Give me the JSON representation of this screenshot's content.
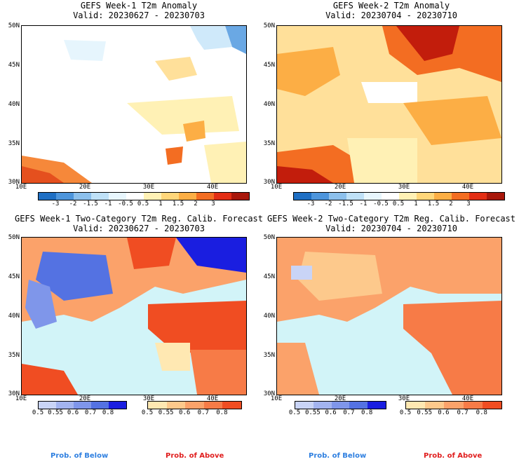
{
  "panels": [
    {
      "title": "GEFS Week-1 T2m Anomaly",
      "valid": "Valid: 20230627 - 20230703"
    },
    {
      "title": "GEFS Week-2 T2m Anomaly",
      "valid": "Valid: 20230704 - 20230710"
    },
    {
      "title": "GEFS Week-1 Two-Category T2m Reg. Calib. Forecast",
      "valid": "Valid: 20230627 - 20230703"
    },
    {
      "title": "GEFS Week-2 Two-Category T2m Reg. Calib. Forecast",
      "valid": "Valid: 20230704 - 20230710"
    }
  ],
  "lat_labels": [
    "50N",
    "45N",
    "40N",
    "35N",
    "30N"
  ],
  "lon_labels": [
    "10E",
    "20E",
    "30E",
    "40E"
  ],
  "anomaly_colorbar": {
    "labels": [
      "-3",
      "-2",
      "-1.5",
      "-1",
      "-0.5",
      "0.5",
      "1",
      "1.5",
      "2",
      "3"
    ],
    "colors": [
      "#1f6fc4",
      "#4d95dc",
      "#8cc0ec",
      "#bfe1f7",
      "#e8f6fd",
      "#ffffff",
      "#fff1b5",
      "#ffd67a",
      "#fcae45",
      "#f36d22",
      "#e32e14",
      "#a8170b"
    ]
  },
  "prob_below": {
    "labels": [
      "0.5",
      "0.55",
      "0.6",
      "0.7",
      "0.8"
    ],
    "colors": [
      "#c9d4f6",
      "#a3b4ef",
      "#7f96ea",
      "#5472e2",
      "#1a1ee0"
    ]
  },
  "prob_above": {
    "labels": [
      "0.5",
      "0.55",
      "0.6",
      "0.7",
      "0.8"
    ],
    "colors": [
      "#ffe8b2",
      "#fdc98c",
      "#fba26a",
      "#f77b47",
      "#f04d22"
    ]
  },
  "legend_text": {
    "below": "Prob. of Below",
    "above": "Prob. of Above"
  },
  "colors": {
    "sea": "#d2f4f8",
    "text_below": "#2e7fe0",
    "text_above": "#e01e1e"
  }
}
